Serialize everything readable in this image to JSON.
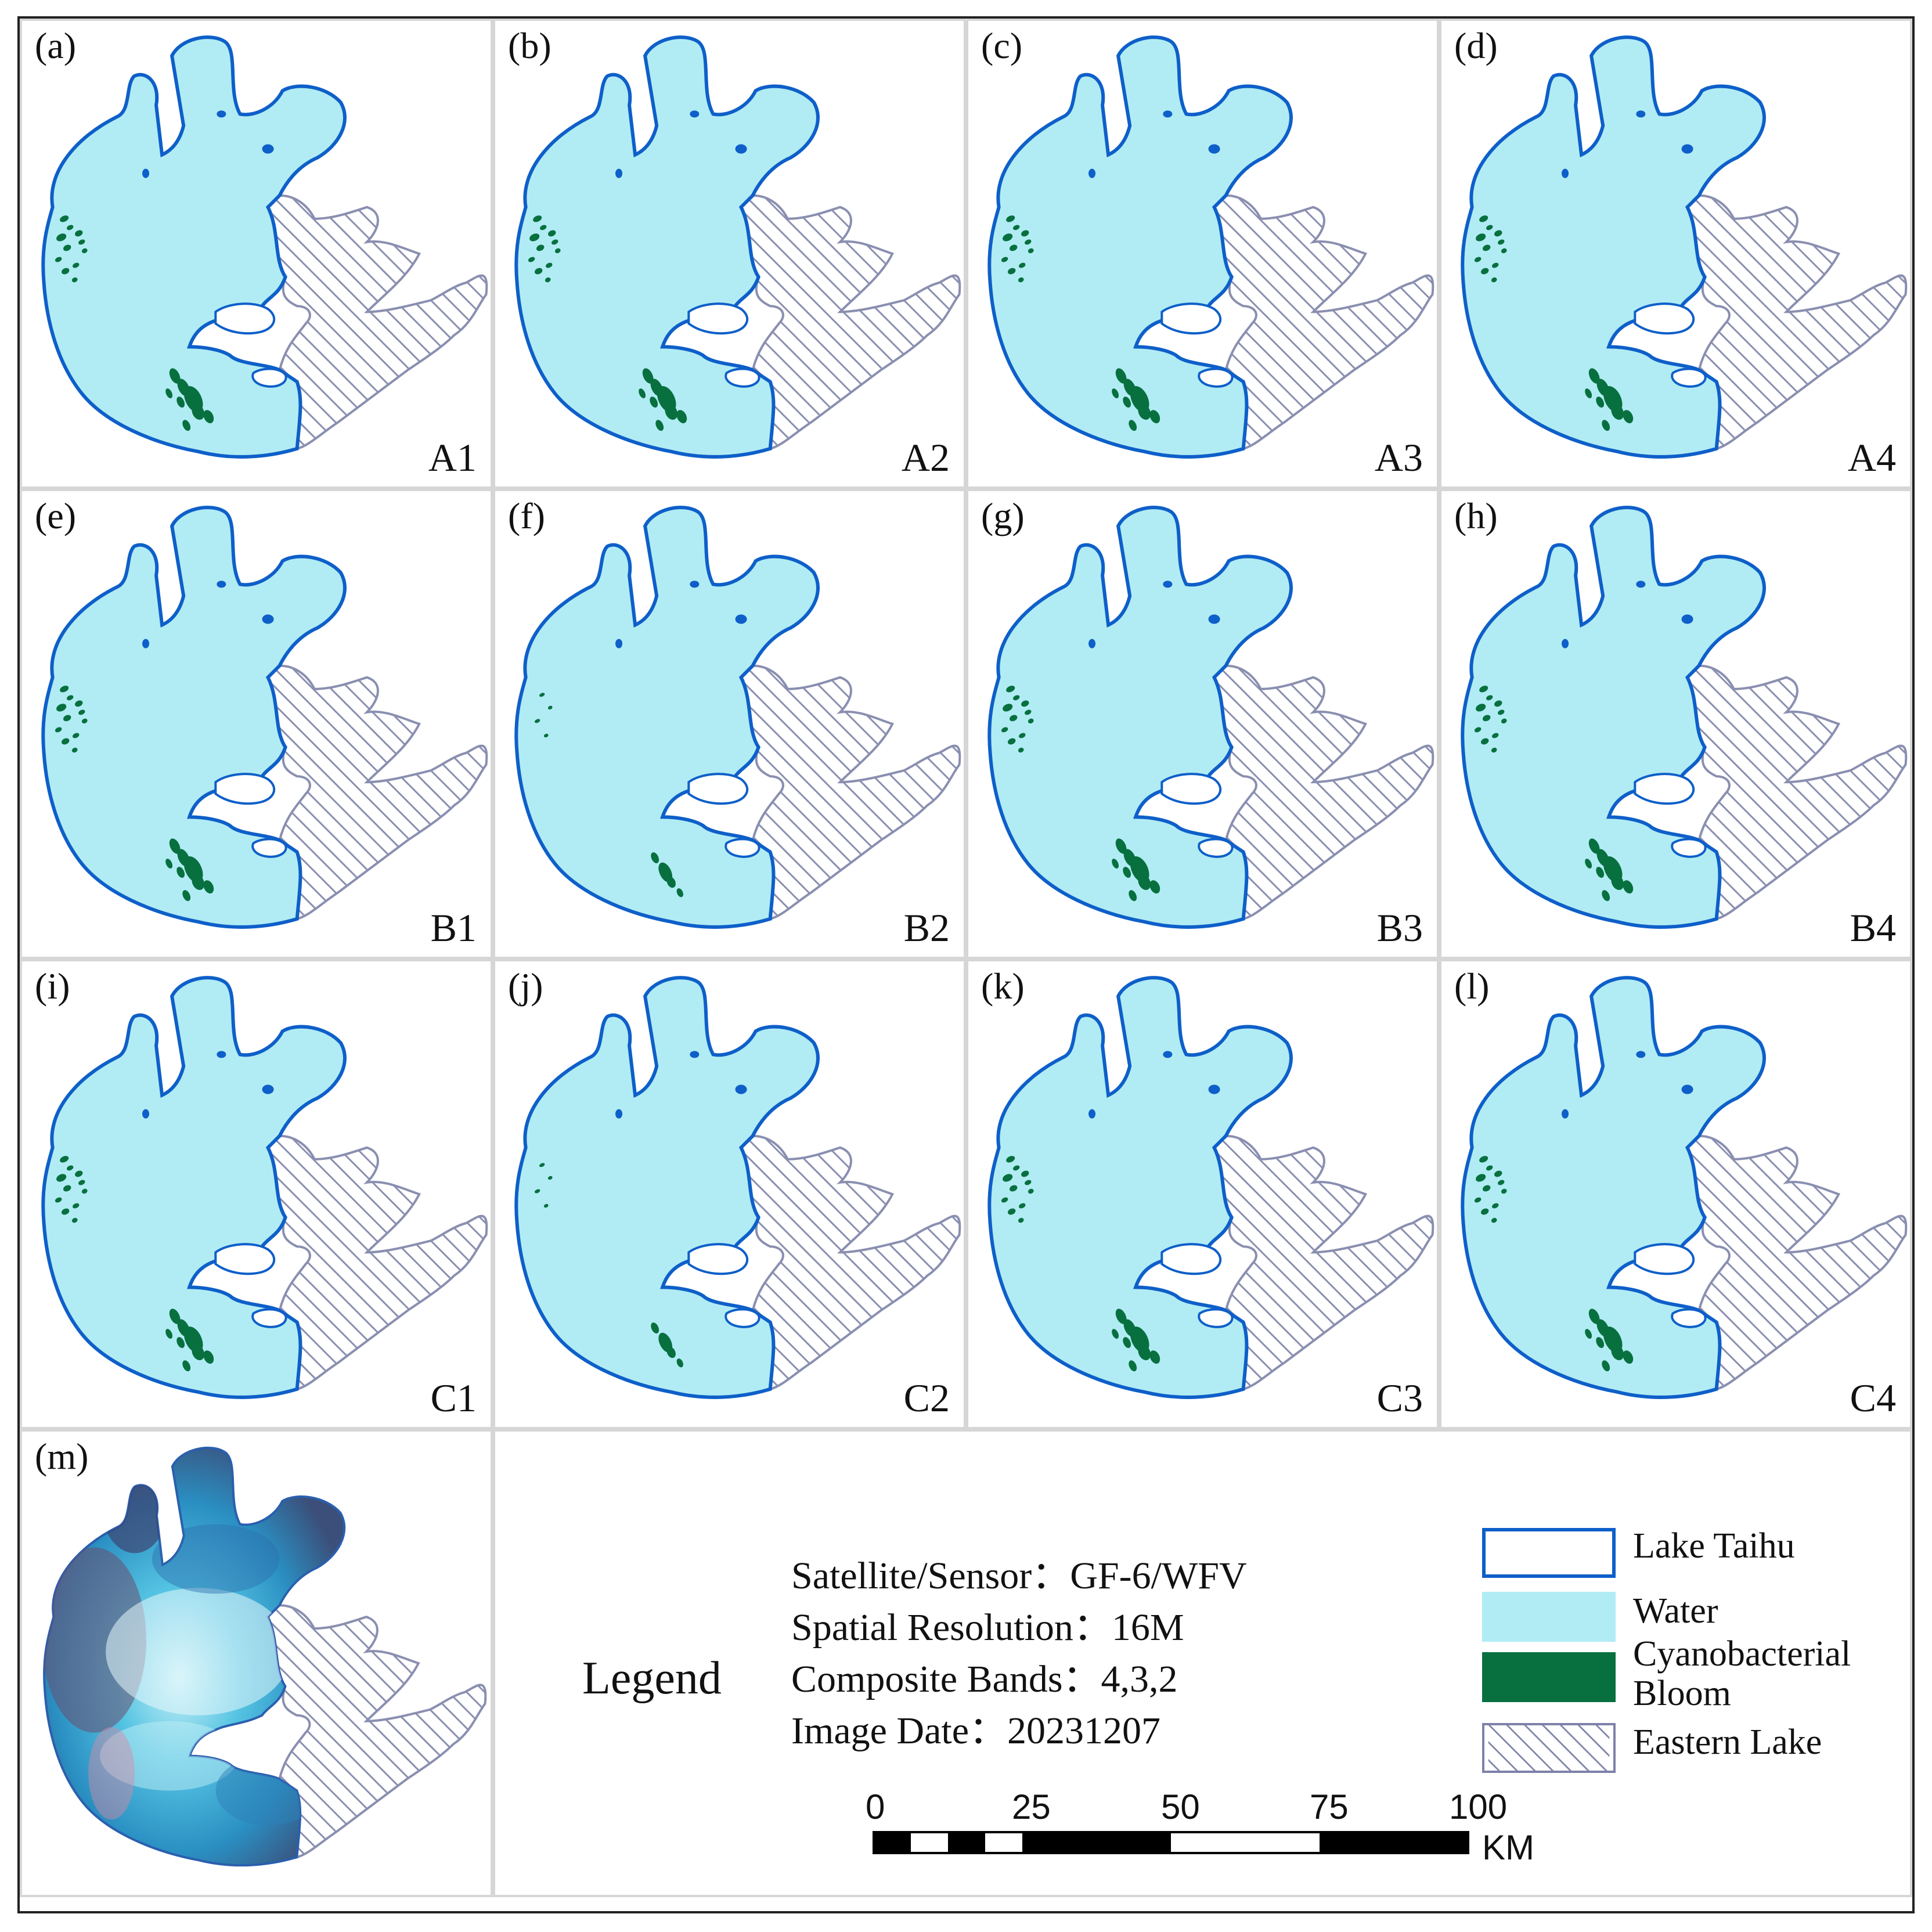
{
  "figure": {
    "panels": [
      {
        "label": "(a)",
        "code": "A1",
        "bloom": "full"
      },
      {
        "label": "(b)",
        "code": "A2",
        "bloom": "full"
      },
      {
        "label": "(c)",
        "code": "A3",
        "bloom": "full"
      },
      {
        "label": "(d)",
        "code": "A4",
        "bloom": "full"
      },
      {
        "label": "(e)",
        "code": "B1",
        "bloom": "full"
      },
      {
        "label": "(f)",
        "code": "B2",
        "bloom": "sparse"
      },
      {
        "label": "(g)",
        "code": "B3",
        "bloom": "full"
      },
      {
        "label": "(h)",
        "code": "B4",
        "bloom": "full"
      },
      {
        "label": "(i)",
        "code": "C1",
        "bloom": "full"
      },
      {
        "label": "(j)",
        "code": "C2",
        "bloom": "sparse"
      },
      {
        "label": "(k)",
        "code": "C3",
        "bloom": "full"
      },
      {
        "label": "(l)",
        "code": "C4",
        "bloom": "full"
      }
    ],
    "image_panel": {
      "label": "(m)"
    },
    "legend": {
      "title": "Legend",
      "satellite": "Satellite/Sensor：GF-6/WFV",
      "resolution": "Spatial Resolution：16M",
      "bands": "Composite Bands：4,3,2",
      "date": "Image Date：20231207",
      "items": [
        {
          "label": "Lake Taihu",
          "style": "outline",
          "color": "#0e5fc9"
        },
        {
          "label": "Water",
          "style": "fill",
          "color": "#b1ecf4"
        },
        {
          "label": "Cyanobacterial",
          "label2": "Bloom",
          "style": "fill",
          "color": "#08703f"
        },
        {
          "label": "Eastern Lake",
          "style": "hatch",
          "color": "#7d82a8"
        }
      ]
    },
    "scale_bar": {
      "ticks": [
        "0",
        "25",
        "50",
        "75",
        "100"
      ],
      "unit": "KM"
    }
  }
}
